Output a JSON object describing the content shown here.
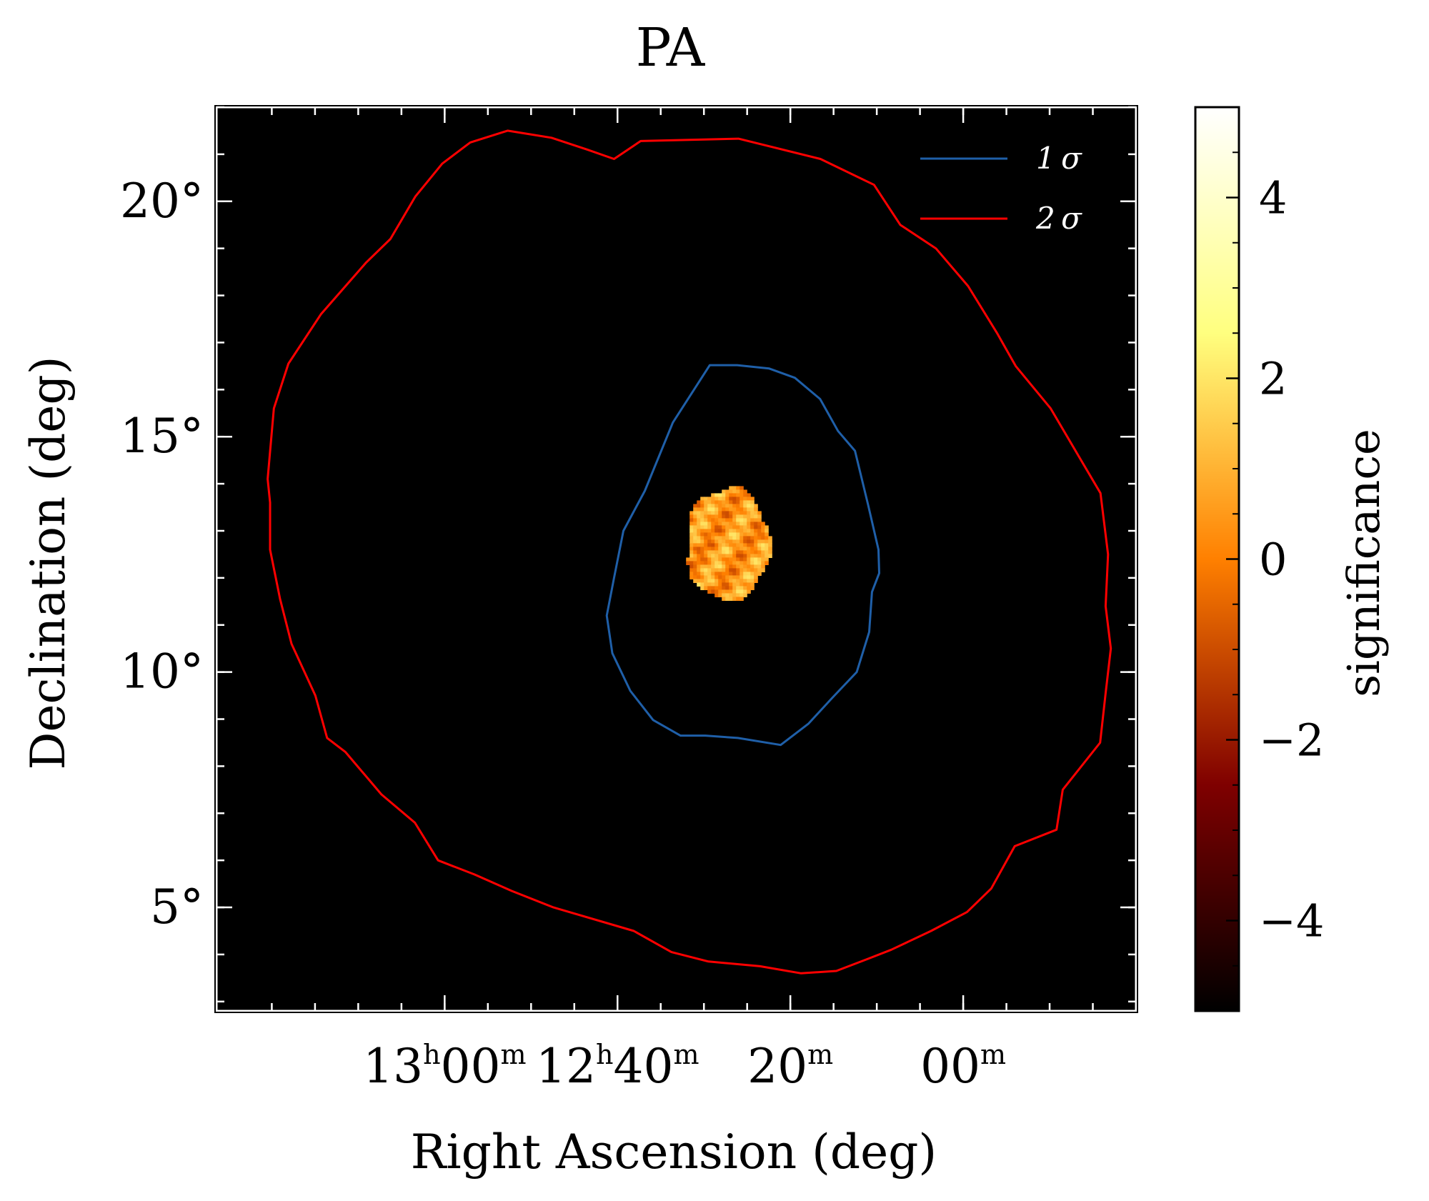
{
  "chart_data": {
    "type": "heatmap",
    "title": "PA",
    "xlabel": "Right Ascension (deg)",
    "ylabel": "Declination (deg)",
    "colorbar_label": "significance",
    "colormap": "afmhot",
    "colorbar_range": [
      -5,
      5
    ],
    "colorbar_ticks": [
      {
        "value": 4,
        "label": "4"
      },
      {
        "value": 2,
        "label": "2"
      },
      {
        "value": 0,
        "label": "0"
      },
      {
        "value": -2,
        "label": "−2"
      },
      {
        "value": -4,
        "label": "−4"
      }
    ],
    "ra_range_deg": [
      201.6,
      175.0
    ],
    "dec_range_deg": [
      2.8,
      22.0
    ],
    "x_ticks": [
      {
        "ra_deg": 195.0,
        "parts": [
          [
            "13",
            ""
          ],
          [
            "h",
            "sup"
          ],
          [
            "00",
            ""
          ],
          [
            "m",
            "sup"
          ]
        ]
      },
      {
        "ra_deg": 190.0,
        "parts": [
          [
            "12",
            ""
          ],
          [
            "h",
            "sup"
          ],
          [
            "40",
            ""
          ],
          [
            "m",
            "sup"
          ]
        ]
      },
      {
        "ra_deg": 185.0,
        "parts": [
          [
            "20",
            ""
          ],
          [
            "m",
            "sup"
          ]
        ]
      },
      {
        "ra_deg": 180.0,
        "parts": [
          [
            "00",
            ""
          ],
          [
            "m",
            "sup"
          ]
        ]
      }
    ],
    "y_ticks": [
      {
        "dec_deg": 20,
        "label": "20°"
      },
      {
        "dec_deg": 15,
        "label": "15°"
      },
      {
        "dec_deg": 10,
        "label": "10°"
      },
      {
        "dec_deg": 5,
        "label": "5°"
      }
    ],
    "legend": {
      "location": "upper right",
      "entries": [
        {
          "label": "1 σ",
          "color": "#1f5fa8"
        },
        {
          "label": "2 σ",
          "color": "#ff0000"
        }
      ]
    },
    "background_color": "#000000",
    "significance_patch": {
      "center_ra_deg": 186.86,
      "center_dec_deg": 12.75,
      "radius_deg": 1.2,
      "value_range": [
        -1.0,
        2.0
      ]
    },
    "contours": [
      {
        "level": "1 sigma",
        "color": "#1f5fa8",
        "ra_deg": [
          187.33,
          186.54,
          185.62,
          184.87,
          184.14,
          183.62,
          183.13,
          182.75,
          182.45,
          182.43,
          182.64,
          182.72,
          183.08,
          183.79,
          184.48,
          185.28,
          186.52,
          187.46,
          188.18,
          188.97,
          189.63,
          190.15,
          190.31,
          190.1,
          189.83,
          189.21,
          188.4
        ],
        "dec_deg": [
          16.52,
          16.52,
          16.45,
          16.25,
          15.8,
          15.12,
          14.7,
          13.55,
          12.6,
          12.1,
          11.7,
          10.85,
          10.0,
          9.45,
          8.9,
          8.45,
          8.6,
          8.65,
          8.65,
          8.98,
          9.6,
          10.4,
          11.2,
          12.0,
          13.0,
          13.85,
          15.3
        ]
      },
      {
        "level": "2 sigma",
        "color": "#ff0000",
        "ra_deg": [
          189.33,
          186.5,
          184.13,
          182.58,
          181.82,
          180.79,
          179.86,
          179.02,
          178.48,
          177.47,
          176.67,
          176.03,
          175.81,
          175.88,
          175.73,
          175.88,
          176.04,
          177.12,
          177.3,
          178.51,
          179.19,
          179.89,
          180.93,
          182.08,
          182.78,
          183.67,
          184.69,
          185.88,
          187.37,
          188.44,
          189.53,
          191.85,
          193.06,
          194.14,
          195.19,
          195.86,
          196.83,
          197.87,
          198.4,
          198.74,
          199.43,
          199.76,
          200.05,
          200.05,
          200.12,
          199.94,
          199.52,
          198.58,
          197.27,
          196.57,
          195.85,
          195.07,
          194.26,
          193.18,
          191.91,
          190.88,
          190.1
        ],
        "dec_deg": [
          21.28,
          21.33,
          20.9,
          20.35,
          19.5,
          19.0,
          18.2,
          17.2,
          16.5,
          15.6,
          14.6,
          13.8,
          12.5,
          11.4,
          10.5,
          9.55,
          8.5,
          7.5,
          6.65,
          6.3,
          5.4,
          4.9,
          4.5,
          4.1,
          3.9,
          3.65,
          3.6,
          3.75,
          3.85,
          4.05,
          4.5,
          5.0,
          5.35,
          5.7,
          6.0,
          6.8,
          7.4,
          8.3,
          8.6,
          9.5,
          10.6,
          11.55,
          12.6,
          13.6,
          14.1,
          15.6,
          16.55,
          17.6,
          18.7,
          19.2,
          20.1,
          20.8,
          21.25,
          21.5,
          21.35,
          21.1,
          20.9
        ]
      }
    ]
  }
}
